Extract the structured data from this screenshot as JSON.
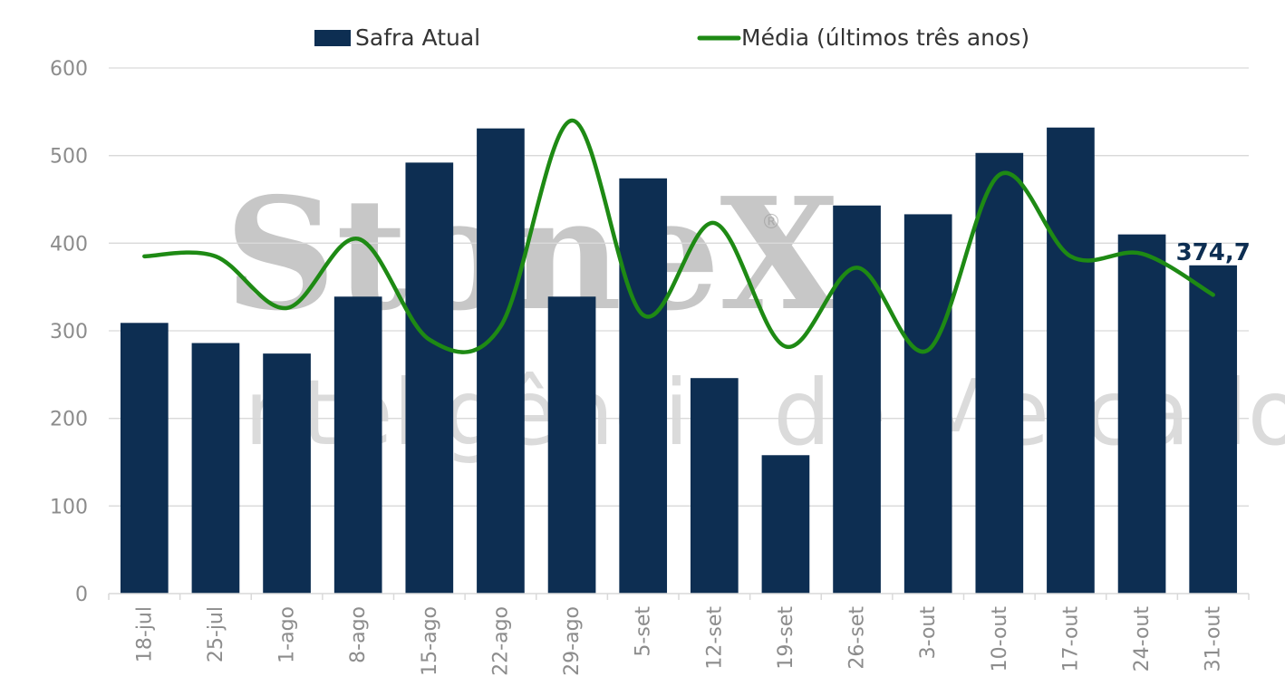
{
  "watermark": {
    "brand": "StoneX",
    "registered": "®",
    "tagline": "Inteligência de Mercado"
  },
  "colors": {
    "bar": "#0d2e52",
    "line": "#1e8a14",
    "grid": "#d9d9d9",
    "axis_text": "#8c8c8c"
  },
  "chart_data": {
    "type": "bar",
    "categories": [
      "18-jul",
      "25-jul",
      "1-ago",
      "8-ago",
      "15-ago",
      "22-ago",
      "29-ago",
      "5-set",
      "12-set",
      "19-set",
      "26-set",
      "3-out",
      "10-out",
      "17-out",
      "24-out",
      "31-out"
    ],
    "series": [
      {
        "name": "Safra Atual",
        "type": "bar",
        "values": [
          309,
          286,
          274,
          339,
          492,
          531,
          339,
          474,
          246,
          158,
          443,
          433,
          503,
          532,
          410,
          374.7
        ]
      },
      {
        "name": "Média (últimos três anos)",
        "type": "line",
        "values": [
          385,
          385,
          326,
          405,
          290,
          305,
          540,
          318,
          423,
          282,
          372,
          278,
          478,
          385,
          388,
          341
        ]
      }
    ],
    "data_labels": [
      {
        "series": "Safra Atual",
        "category": "31-out",
        "text": "374,7"
      }
    ],
    "y_ticks": [
      "0",
      "100",
      "200",
      "300",
      "400",
      "500",
      "600"
    ],
    "ylim": [
      0,
      600
    ],
    "grid": true,
    "legend_position": "top",
    "title": "",
    "xlabel": "",
    "ylabel": ""
  }
}
